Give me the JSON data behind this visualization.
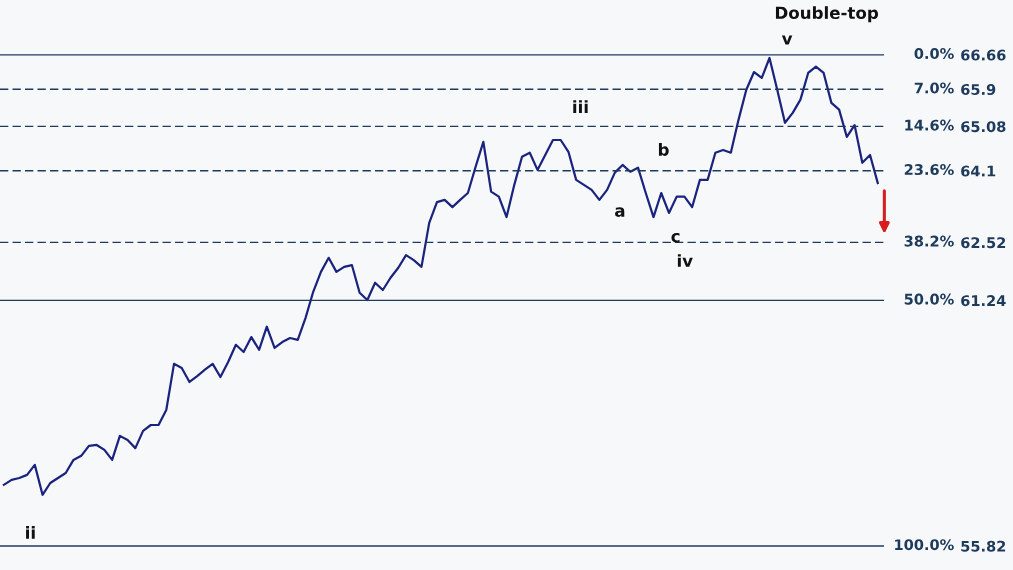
{
  "chart_data": {
    "type": "line",
    "categories": [
      null,
      null,
      null,
      null,
      null,
      null,
      null,
      null,
      null,
      null,
      null,
      null,
      null,
      null,
      null,
      null,
      null,
      null,
      null,
      null,
      null,
      null,
      null,
      null,
      null,
      null,
      null,
      null,
      null,
      null,
      null,
      null,
      null,
      null,
      null,
      null,
      null,
      null,
      null,
      null,
      null,
      null,
      null,
      null,
      null,
      null,
      null,
      null,
      null,
      null,
      null,
      null,
      null,
      null,
      null,
      null,
      null,
      null,
      null,
      null,
      null,
      null,
      null,
      null,
      null,
      null,
      null,
      null,
      null,
      null,
      null,
      null,
      null,
      null,
      null,
      null,
      null,
      null,
      null,
      null,
      null,
      null,
      null,
      null,
      null,
      null,
      null,
      null,
      null,
      null,
      null,
      null,
      null,
      null,
      null,
      null,
      null,
      null,
      null,
      null,
      null,
      null,
      null,
      null,
      null,
      null,
      null,
      null,
      null,
      null,
      null,
      null,
      null,
      null
    ],
    "series": [
      {
        "color": "#1a237e",
        "values": [
          57.17,
          57.28,
          57.32,
          57.39,
          57.61,
          56.95,
          57.21,
          57.32,
          57.43,
          57.72,
          57.81,
          58.03,
          58.05,
          57.94,
          57.72,
          58.25,
          58.16,
          57.98,
          58.36,
          58.49,
          58.49,
          58.82,
          59.84,
          59.75,
          59.44,
          59.57,
          59.71,
          59.84,
          59.55,
          59.88,
          60.26,
          60.1,
          60.43,
          60.15,
          60.66,
          60.19,
          60.32,
          60.41,
          60.37,
          60.85,
          61.43,
          61.87,
          62.18,
          61.87,
          61.98,
          62.02,
          61.41,
          61.25,
          61.63,
          61.47,
          61.74,
          61.96,
          62.24,
          62.13,
          61.98,
          62.95,
          63.41,
          63.46,
          63.3,
          63.46,
          63.61,
          64.19,
          64.74,
          63.64,
          63.53,
          63.08,
          63.79,
          64.41,
          64.5,
          64.12,
          64.45,
          64.78,
          64.78,
          64.52,
          63.9,
          63.79,
          63.68,
          63.46,
          63.68,
          64.06,
          64.23,
          64.08,
          64.17,
          63.61,
          63.08,
          63.61,
          63.17,
          63.53,
          63.53,
          63.3,
          63.9,
          63.9,
          64.5,
          64.56,
          64.5,
          65.23,
          65.89,
          66.28,
          66.15,
          66.59,
          65.89,
          65.16,
          65.38,
          65.67,
          66.26,
          66.4,
          66.26,
          65.6,
          65.45,
          64.85,
          65.11,
          64.28,
          64.45,
          63.83
        ]
      }
    ],
    "ylim": [
      55.29,
      67.87
    ],
    "yticks": [
      66.66,
      65.9,
      65.08,
      64.1,
      62.52,
      61.24,
      55.82
    ],
    "ref_lines": [
      {
        "axis": "y",
        "value": 66.66,
        "color": "#1f3b5c",
        "line_style": "solid"
      },
      {
        "axis": "y",
        "value": 65.9,
        "color": "#1f3b5c",
        "line_style": "dashed"
      },
      {
        "axis": "y",
        "value": 65.08,
        "color": "#1f3b5c",
        "line_style": "dashed"
      },
      {
        "axis": "y",
        "value": 64.1,
        "color": "#1f3b5c",
        "line_style": "dashed"
      },
      {
        "axis": "y",
        "value": 62.52,
        "color": "#1f3b5c",
        "line_style": "dashed"
      },
      {
        "axis": "y",
        "value": 61.24,
        "color": "#1f3b5c",
        "line_style": "solid"
      },
      {
        "axis": "y",
        "value": 55.82,
        "color": "#1f3b5c",
        "line_style": "solid"
      }
    ],
    "annotations": [
      "Double-top",
      "v",
      "iii",
      "b",
      "a",
      "c",
      "iv",
      "ii",
      "0.0%",
      "7.0%",
      "14.6%",
      "23.6%",
      "38.2%",
      "50.0%",
      "100.0%"
    ],
    "grid": false,
    "legend": false,
    "marker": "none",
    "line_style": "solid"
  }
}
